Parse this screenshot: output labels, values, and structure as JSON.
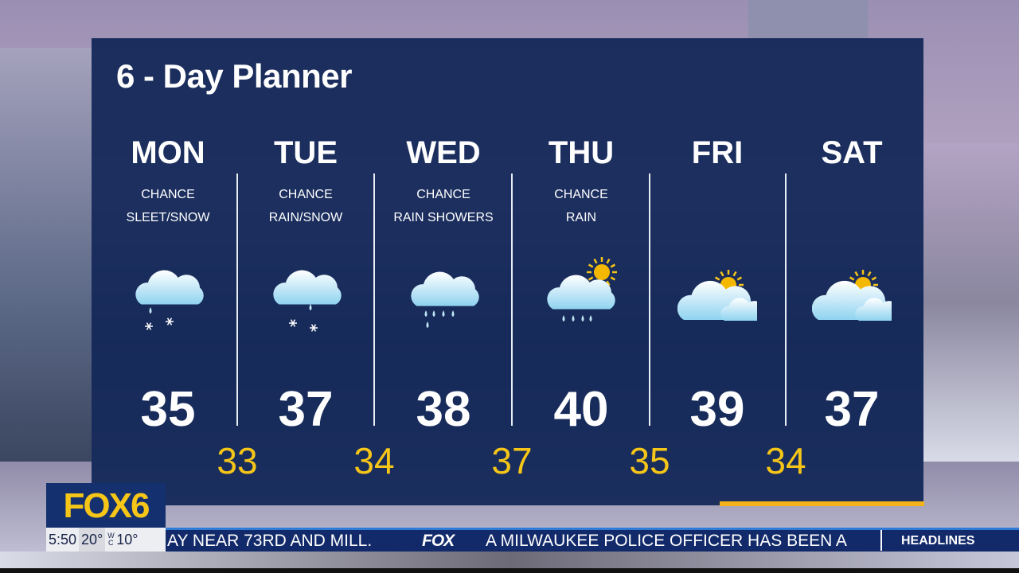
{
  "title": "6 - Day Planner",
  "days": [
    {
      "day": "MON",
      "cond1": "CHANCE",
      "cond2": "SLEET/SNOW",
      "high": "35",
      "icon": "sleet-snow-cloud-icon"
    },
    {
      "day": "TUE",
      "cond1": "CHANCE",
      "cond2": "RAIN/SNOW",
      "high": "37",
      "icon": "rain-snow-cloud-icon"
    },
    {
      "day": "WED",
      "cond1": "CHANCE",
      "cond2": "RAIN SHOWERS",
      "high": "38",
      "icon": "rain-showers-cloud-icon"
    },
    {
      "day": "THU",
      "cond1": "CHANCE",
      "cond2": "RAIN",
      "high": "40",
      "icon": "sun-rain-cloud-icon"
    },
    {
      "day": "FRI",
      "cond1": "",
      "cond2": "",
      "high": "39",
      "icon": "partly-cloudy-icon"
    },
    {
      "day": "SAT",
      "cond1": "",
      "cond2": "",
      "high": "37",
      "icon": "partly-cloudy-icon"
    }
  ],
  "lows": [
    "33",
    "34",
    "37",
    "35",
    "34"
  ],
  "logo": "FOX6",
  "status": {
    "time": "5:50",
    "temp": "20°",
    "wc_label": "WC",
    "wind_chill": "10°"
  },
  "ticker": {
    "text1": "AY NEAR 73RD AND MILL.",
    "brand": "FOX",
    "text2": "A MILWAUKEE POLICE OFFICER HAS BEEN A",
    "section": "HEADLINES"
  },
  "colors": {
    "panel": "#102656",
    "low_temp": "#f5c518",
    "accent": "#f3b21a",
    "ticker": "#122a6a"
  }
}
